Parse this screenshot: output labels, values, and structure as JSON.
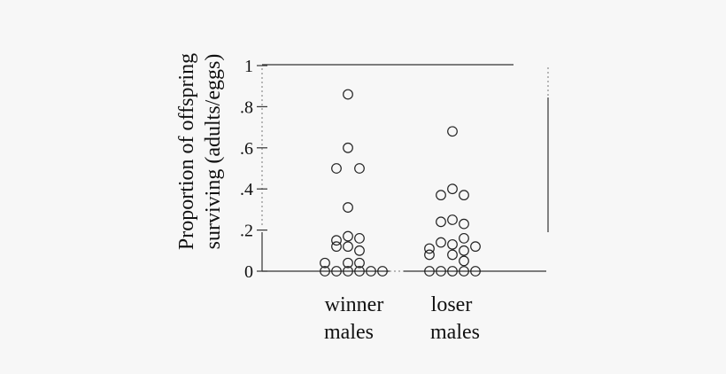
{
  "chart_data": {
    "type": "scatter",
    "ylabel_line1": "Proportion of offspring",
    "ylabel_line2": "surviving (adults/eggs)",
    "ylim": [
      0,
      1
    ],
    "yticks": [
      {
        "value": 0,
        "label": "0"
      },
      {
        "value": 0.2,
        "label": ".2"
      },
      {
        "value": 0.4,
        "label": ".4"
      },
      {
        "value": 0.6,
        "label": ".6"
      },
      {
        "value": 0.8,
        "label": ".8"
      },
      {
        "value": 1,
        "label": "1"
      }
    ],
    "categories": [
      {
        "line1": "winner",
        "line2": "males"
      },
      {
        "line1": "loser",
        "line2": "males"
      }
    ],
    "series": [
      {
        "category": 0,
        "points": [
          {
            "y": 0.86,
            "offset": 0
          },
          {
            "y": 0.6,
            "offset": 0
          },
          {
            "y": 0.5,
            "offset": -1
          },
          {
            "y": 0.5,
            "offset": 1
          },
          {
            "y": 0.31,
            "offset": 0
          },
          {
            "y": 0.17,
            "offset": 0
          },
          {
            "y": 0.16,
            "offset": 1
          },
          {
            "y": 0.15,
            "offset": -1
          },
          {
            "y": 0.12,
            "offset": -1
          },
          {
            "y": 0.12,
            "offset": 0
          },
          {
            "y": 0.1,
            "offset": 1
          },
          {
            "y": 0.04,
            "offset": -2
          },
          {
            "y": 0.04,
            "offset": 0
          },
          {
            "y": 0.04,
            "offset": 1
          },
          {
            "y": 0.0,
            "offset": -2
          },
          {
            "y": 0.0,
            "offset": -1
          },
          {
            "y": 0.0,
            "offset": 0
          },
          {
            "y": 0.0,
            "offset": 1
          },
          {
            "y": 0.0,
            "offset": 2
          },
          {
            "y": 0.0,
            "offset": 3
          }
        ]
      },
      {
        "category": 1,
        "points": [
          {
            "y": 0.68,
            "offset": 0
          },
          {
            "y": 0.4,
            "offset": 0
          },
          {
            "y": 0.37,
            "offset": -1
          },
          {
            "y": 0.37,
            "offset": 1
          },
          {
            "y": 0.25,
            "offset": 0
          },
          {
            "y": 0.24,
            "offset": -1
          },
          {
            "y": 0.23,
            "offset": 1
          },
          {
            "y": 0.16,
            "offset": 1
          },
          {
            "y": 0.14,
            "offset": -1
          },
          {
            "y": 0.13,
            "offset": 0
          },
          {
            "y": 0.12,
            "offset": 2
          },
          {
            "y": 0.11,
            "offset": -2
          },
          {
            "y": 0.1,
            "offset": 1
          },
          {
            "y": 0.08,
            "offset": -2
          },
          {
            "y": 0.08,
            "offset": 0
          },
          {
            "y": 0.05,
            "offset": 1
          },
          {
            "y": 0.0,
            "offset": -2
          },
          {
            "y": 0.0,
            "offset": -1
          },
          {
            "y": 0.0,
            "offset": 0
          },
          {
            "y": 0.0,
            "offset": 1
          },
          {
            "y": 0.0,
            "offset": 2
          }
        ]
      }
    ]
  }
}
